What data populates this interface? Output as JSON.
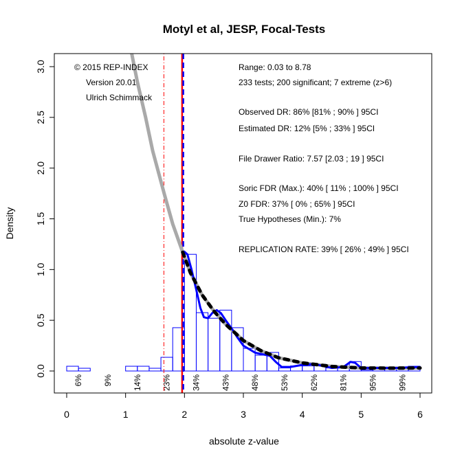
{
  "chart_data": {
    "type": "bar",
    "title": "Motyl et al, JESP, Focal-Tests",
    "xlabel": "absolute z-value",
    "ylabel": "Density",
    "xlim": [
      0,
      6
    ],
    "ylim": [
      0,
      3.0
    ],
    "xticks": [
      "0",
      "1",
      "2",
      "3",
      "4",
      "5",
      "6"
    ],
    "yticks": [
      "0.0",
      "0.5",
      "1.0",
      "1.5",
      "2.0",
      "2.5",
      "3.0"
    ],
    "histogram": {
      "bin_width": 0.2,
      "bin_starts": [
        0,
        0.2,
        0.4,
        0.6,
        0.8,
        1.0,
        1.2,
        1.4,
        1.6,
        1.8,
        2.0,
        2.2,
        2.4,
        2.6,
        2.8,
        3.0,
        3.2,
        3.4,
        3.6,
        3.8,
        4.0,
        4.2,
        4.4,
        4.6,
        4.8,
        5.0,
        5.2,
        5.4,
        5.6,
        5.8
      ],
      "density": [
        0.047,
        0.027,
        0,
        0,
        0,
        0.047,
        0.047,
        0.027,
        0.135,
        0.427,
        1.15,
        0.575,
        0.52,
        0.6,
        0.427,
        0.223,
        0.156,
        0.183,
        0.03,
        0.05,
        0.05,
        0.067,
        0.03,
        0.03,
        0.093,
        0.01,
        0.04,
        0.04,
        0.02,
        0.047
      ],
      "color": "#0000FF"
    },
    "power_labels": {
      "x": [
        0.2,
        0.7,
        1.2,
        1.7,
        2.2,
        2.7,
        3.2,
        3.7,
        4.2,
        4.7,
        5.2,
        5.7
      ],
      "labels": [
        "6%",
        "9%",
        "14%",
        "23%",
        "34%",
        "43%",
        "48%",
        "53%",
        "62%",
        "81%",
        "95%",
        "99%"
      ]
    },
    "zcurve_fit": {
      "color": "#A9A9A9",
      "x": [
        1.08,
        1.2,
        1.34,
        1.46,
        1.66,
        1.8,
        1.97,
        2.1,
        2.3,
        2.5,
        2.7,
        3.0,
        3.3,
        3.6,
        4.0,
        4.5,
        5.0,
        5.5,
        6.0
      ],
      "y": [
        3.2,
        2.85,
        2.5,
        2.17,
        1.74,
        1.45,
        1.17,
        0.97,
        0.75,
        0.59,
        0.46,
        0.3,
        0.2,
        0.13,
        0.08,
        0.045,
        0.03,
        0.028,
        0.03
      ]
    },
    "zcurve_dashed": {
      "color": "#000000",
      "x": [
        1.97,
        2.1,
        2.3,
        2.5,
        2.7,
        3.0,
        3.3,
        3.6,
        4.0,
        4.5,
        5.0,
        5.5,
        6.0
      ],
      "y": [
        1.17,
        0.97,
        0.75,
        0.59,
        0.46,
        0.3,
        0.2,
        0.13,
        0.08,
        0.045,
        0.03,
        0.028,
        0.03
      ]
    },
    "density_curve": {
      "color": "#0000FF",
      "x": [
        1.99,
        2.05,
        2.12,
        2.2,
        2.27,
        2.33,
        2.4,
        2.47,
        2.55,
        2.62,
        2.7,
        2.8,
        2.9,
        3.0,
        3.2,
        3.45,
        3.55,
        3.65,
        3.8,
        4.0,
        4.2,
        4.35,
        4.5,
        4.7,
        4.82,
        4.9,
        5.0,
        5.2,
        5.6,
        5.8,
        6.0
      ],
      "y": [
        1.18,
        1.15,
        1.0,
        0.8,
        0.62,
        0.53,
        0.52,
        0.57,
        0.6,
        0.57,
        0.5,
        0.42,
        0.33,
        0.25,
        0.18,
        0.15,
        0.09,
        0.04,
        0.04,
        0.06,
        0.07,
        0.05,
        0.03,
        0.04,
        0.09,
        0.08,
        0.03,
        0.03,
        0.03,
        0.035,
        0.04
      ]
    },
    "vlines": [
      {
        "x": 1.96,
        "color": "#FF0000",
        "style": "solid"
      },
      {
        "x": 1.98,
        "color": "#0000FF",
        "style": "dashed"
      },
      {
        "x": 1.65,
        "color": "#FF0000",
        "style": "dotdash"
      }
    ],
    "annotations_left": [
      "© 2015 REP-INDEX",
      "Version 20.01",
      "Ulrich Schimmack"
    ],
    "annotations_right": [
      "Range: 0.03 to 8.78",
      "233 tests; 200 significant; 7 extreme (z>6)",
      "Observed DR: 86% [81% ; 90% ] 95CI",
      "Estimated DR: 12% [5% ; 33% ] 95CI",
      "File Drawer Ratio: 7.57 [2.03 ; 19 ] 95CI",
      "Soric FDR (Max.): 40% [ 11% ; 100% ] 95CI",
      "Z0 FDR: 37% [ 0% ; 65% ] 95CI",
      "True Hypotheses (Min.): 7%",
      "REPLICATION RATE: 39% [ 26% ; 49% ] 95CI"
    ]
  }
}
